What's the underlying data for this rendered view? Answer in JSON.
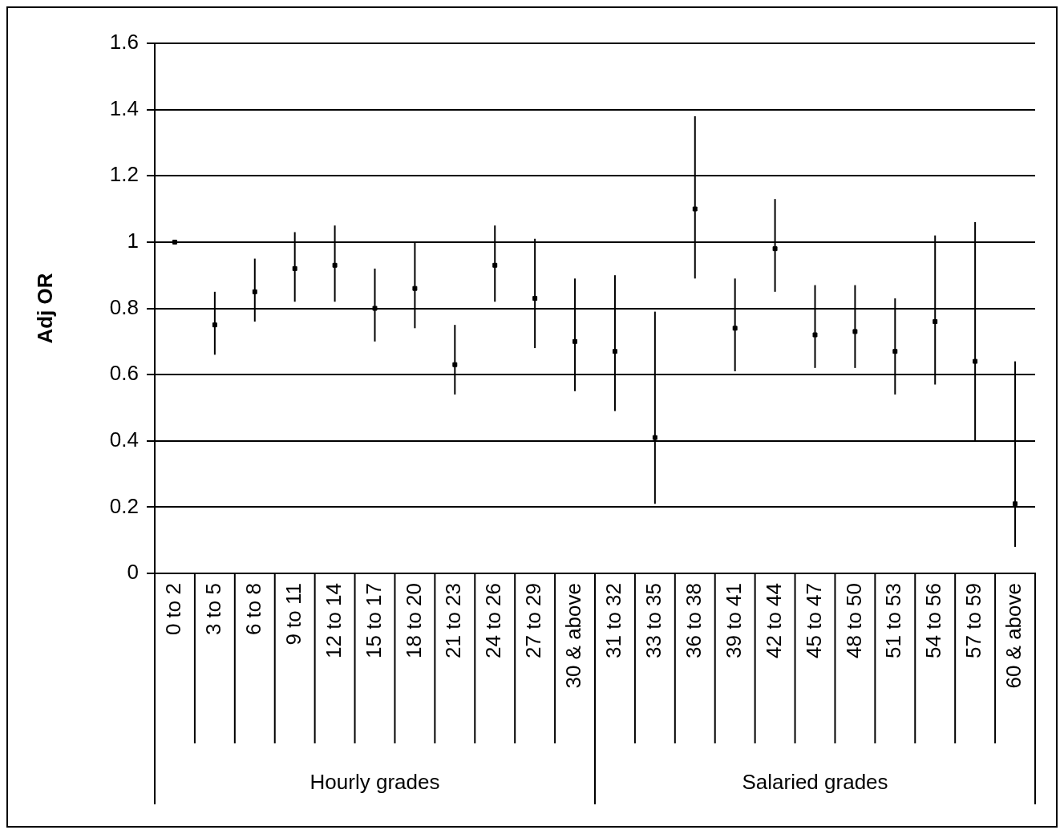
{
  "chart_data": {
    "type": "scatter",
    "ylabel": "Adj OR",
    "categories": [
      "0 to 2",
      "3 to 5",
      "6 to 8",
      "9 to 11",
      "12 to 14",
      "15 to 17",
      "18 to 20",
      "21 to 23",
      "24 to 26",
      "27 to 29",
      "30 & above",
      "31 to 32",
      "33 to 35",
      "36 to 38",
      "39 to 41",
      "42 to 44",
      "45 to 47",
      "48 to 50",
      "51 to 53",
      "54 to 56",
      "57 to 59",
      "60 & above"
    ],
    "values": [
      1.0,
      0.75,
      0.85,
      0.92,
      0.93,
      0.8,
      0.86,
      0.63,
      0.93,
      0.83,
      0.7,
      0.67,
      0.41,
      1.1,
      0.74,
      0.98,
      0.72,
      0.73,
      0.67,
      0.76,
      0.64,
      0.21
    ],
    "errors": [
      null,
      [
        0.66,
        0.85
      ],
      [
        0.76,
        0.95
      ],
      [
        0.82,
        1.03
      ],
      [
        0.82,
        1.05
      ],
      [
        0.7,
        0.92
      ],
      [
        0.74,
        1.0
      ],
      [
        0.54,
        0.75
      ],
      [
        0.82,
        1.05
      ],
      [
        0.68,
        1.01
      ],
      [
        0.55,
        0.89
      ],
      [
        0.49,
        0.9
      ],
      [
        0.21,
        0.79
      ],
      [
        0.89,
        1.38
      ],
      [
        0.61,
        0.89
      ],
      [
        0.85,
        1.13
      ],
      [
        0.62,
        0.87
      ],
      [
        0.62,
        0.87
      ],
      [
        0.54,
        0.83
      ],
      [
        0.57,
        1.02
      ],
      [
        0.4,
        1.06
      ],
      [
        0.08,
        0.64
      ]
    ],
    "color": "#000000",
    "marker": "square",
    "grid": "y",
    "ylim": [
      0,
      1.6
    ],
    "yticks": [
      0,
      0.2,
      0.4,
      0.6,
      0.8,
      1,
      1.2,
      1.4,
      1.6
    ],
    "annotations": [
      "Hourly grades",
      "Salaried grades"
    ]
  }
}
